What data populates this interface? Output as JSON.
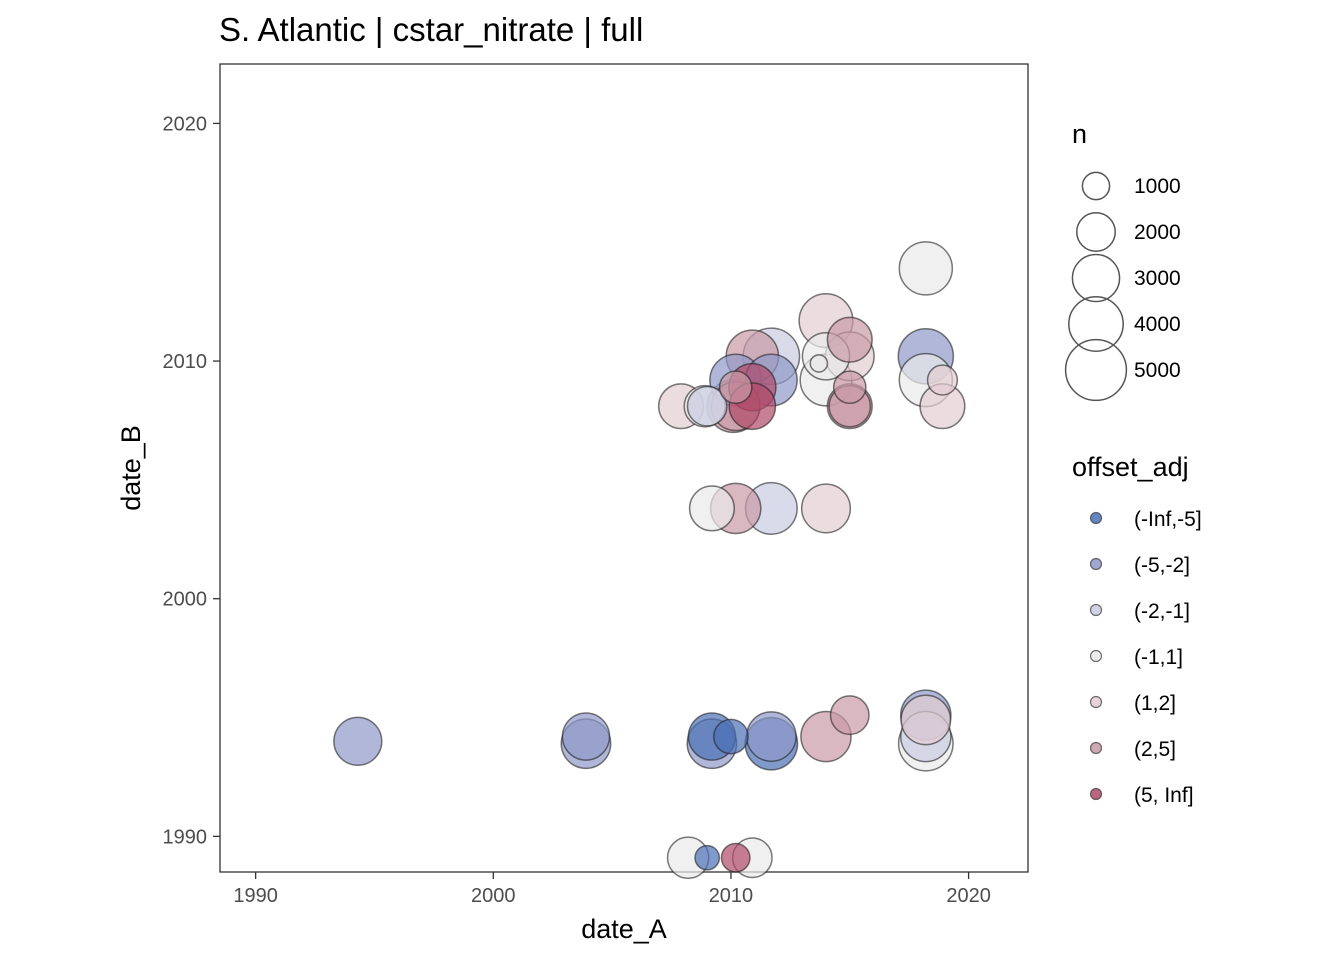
{
  "chart_data": {
    "type": "scatter",
    "title": "S. Atlantic | cstar_nitrate | full",
    "xlabel": "date_A",
    "ylabel": "date_B",
    "xlim": [
      1988.5,
      2022.5
    ],
    "ylim": [
      1988.5,
      2022.5
    ],
    "x_ticks": [
      1990,
      2000,
      2010,
      2020
    ],
    "y_ticks": [
      1990,
      2000,
      2010,
      2020
    ],
    "grid": false,
    "legend_position": "right",
    "size_legend": {
      "title": "n",
      "entries": [
        {
          "label": "1000",
          "value": 1000
        },
        {
          "label": "2000",
          "value": 2000
        },
        {
          "label": "3000",
          "value": 3000
        },
        {
          "label": "4000",
          "value": 4000
        },
        {
          "label": "5000",
          "value": 5000
        }
      ]
    },
    "color_legend": {
      "title": "offset_adj",
      "entries": [
        {
          "label": "(-Inf,-5]",
          "color": "#4a6fb5"
        },
        {
          "label": "(-5,-2]",
          "color": "#8f98c8"
        },
        {
          "label": "(-2,-1]",
          "color": "#c9cbe1"
        },
        {
          "label": "(-1,1]",
          "color": "#eaeaea"
        },
        {
          "label": "(1,2]",
          "color": "#e3cdd3"
        },
        {
          "label": "(2,5]",
          "color": "#c99aa7"
        },
        {
          "label": "(5, Inf]",
          "color": "#b04a6a"
        }
      ]
    },
    "points": [
      {
        "x": 1994.3,
        "y": 1994.0,
        "n": 3100,
        "offset": "(-5,-2]"
      },
      {
        "x": 2003.9,
        "y": 1994.2,
        "n": 3000,
        "offset": "(-5,-2]"
      },
      {
        "x": 2003.9,
        "y": 1993.9,
        "n": 3300,
        "offset": "(-5,-2]"
      },
      {
        "x": 2009.2,
        "y": 1994.2,
        "n": 3000,
        "offset": "(-Inf,-5]"
      },
      {
        "x": 2009.2,
        "y": 1993.9,
        "n": 3300,
        "offset": "(-5,-2]"
      },
      {
        "x": 2010.0,
        "y": 1994.2,
        "n": 1600,
        "offset": "(-Inf,-5]"
      },
      {
        "x": 2011.7,
        "y": 1994.2,
        "n": 3300,
        "offset": "(-5,-2]"
      },
      {
        "x": 2011.7,
        "y": 1993.9,
        "n": 3700,
        "offset": "(-Inf,-5]"
      },
      {
        "x": 2014.0,
        "y": 1994.2,
        "n": 3400,
        "offset": "(2,5]"
      },
      {
        "x": 2015.0,
        "y": 1995.1,
        "n": 2000,
        "offset": "(2,5]"
      },
      {
        "x": 2018.2,
        "y": 1995.1,
        "n": 3400,
        "offset": "(-5,-2]"
      },
      {
        "x": 2018.2,
        "y": 1994.9,
        "n": 3300,
        "offset": "(1,2]"
      },
      {
        "x": 2018.2,
        "y": 1994.2,
        "n": 3400,
        "offset": "(-2,-1]"
      },
      {
        "x": 2018.2,
        "y": 1993.9,
        "n": 4000,
        "offset": "(-1,1]"
      },
      {
        "x": 2008.2,
        "y": 1989.1,
        "n": 2300,
        "offset": "(-1,1]"
      },
      {
        "x": 2009.0,
        "y": 1989.1,
        "n": 800,
        "offset": "(-Inf,-5]"
      },
      {
        "x": 2010.2,
        "y": 1989.1,
        "n": 1100,
        "offset": "(5, Inf]"
      },
      {
        "x": 2010.9,
        "y": 1989.1,
        "n": 2100,
        "offset": "(-1,1]"
      },
      {
        "x": 2009.2,
        "y": 2003.8,
        "n": 2700,
        "offset": "(-1,1]"
      },
      {
        "x": 2010.2,
        "y": 2003.8,
        "n": 3400,
        "offset": "(2,5]"
      },
      {
        "x": 2011.7,
        "y": 2003.8,
        "n": 3600,
        "offset": "(-2,-1]"
      },
      {
        "x": 2014.0,
        "y": 2003.8,
        "n": 3200,
        "offset": "(1,2]"
      },
      {
        "x": 2007.9,
        "y": 2008.1,
        "n": 2700,
        "offset": "(1,2]"
      },
      {
        "x": 2008.9,
        "y": 2008.1,
        "n": 2300,
        "offset": "(-1,1]"
      },
      {
        "x": 2009.0,
        "y": 2008.1,
        "n": 2100,
        "offset": "(-2,-1]"
      },
      {
        "x": 2010.1,
        "y": 2008.1,
        "n": 3700,
        "offset": "(2,5]"
      },
      {
        "x": 2010.2,
        "y": 2008.1,
        "n": 3200,
        "offset": "(2,5]"
      },
      {
        "x": 2010.9,
        "y": 2008.1,
        "n": 2900,
        "offset": "(5, Inf]"
      },
      {
        "x": 2010.9,
        "y": 2008.9,
        "n": 3000,
        "offset": "(5, Inf]"
      },
      {
        "x": 2010.2,
        "y": 2008.9,
        "n": 1400,
        "offset": "(2,5]"
      },
      {
        "x": 2010.2,
        "y": 2009.2,
        "n": 3600,
        "offset": "(-5,-2]"
      },
      {
        "x": 2011.7,
        "y": 2009.2,
        "n": 3600,
        "offset": "(-5,-2]"
      },
      {
        "x": 2010.9,
        "y": 2010.2,
        "n": 3700,
        "offset": "(2,5]"
      },
      {
        "x": 2011.7,
        "y": 2010.2,
        "n": 4300,
        "offset": "(-2,-1]"
      },
      {
        "x": 2014.0,
        "y": 2011.7,
        "n": 3900,
        "offset": "(1,2]"
      },
      {
        "x": 2014.0,
        "y": 2010.2,
        "n": 3000,
        "offset": "(-1,1]"
      },
      {
        "x": 2014.0,
        "y": 2009.2,
        "n": 3600,
        "offset": "(-1,1]"
      },
      {
        "x": 2013.7,
        "y": 2009.9,
        "n": 400,
        "offset": "(-1,1]"
      },
      {
        "x": 2015.0,
        "y": 2010.9,
        "n": 2700,
        "offset": "(2,5]"
      },
      {
        "x": 2015.0,
        "y": 2010.2,
        "n": 3200,
        "offset": "(1,2]"
      },
      {
        "x": 2015.0,
        "y": 2008.9,
        "n": 1400,
        "offset": "(2,5]"
      },
      {
        "x": 2015.0,
        "y": 2008.1,
        "n": 2700,
        "offset": "(2,5]"
      },
      {
        "x": 2015.0,
        "y": 2008.1,
        "n": 2300,
        "offset": "(2,5]"
      },
      {
        "x": 2018.2,
        "y": 2013.9,
        "n": 3800,
        "offset": "(-1,1]"
      },
      {
        "x": 2018.2,
        "y": 2010.2,
        "n": 4100,
        "offset": "(-5,-2]"
      },
      {
        "x": 2018.2,
        "y": 2009.2,
        "n": 3800,
        "offset": "(-1,1]"
      },
      {
        "x": 2018.9,
        "y": 2009.2,
        "n": 1200,
        "offset": "(1,2]"
      },
      {
        "x": 2018.9,
        "y": 2008.1,
        "n": 2700,
        "offset": "(1,2]"
      }
    ]
  }
}
